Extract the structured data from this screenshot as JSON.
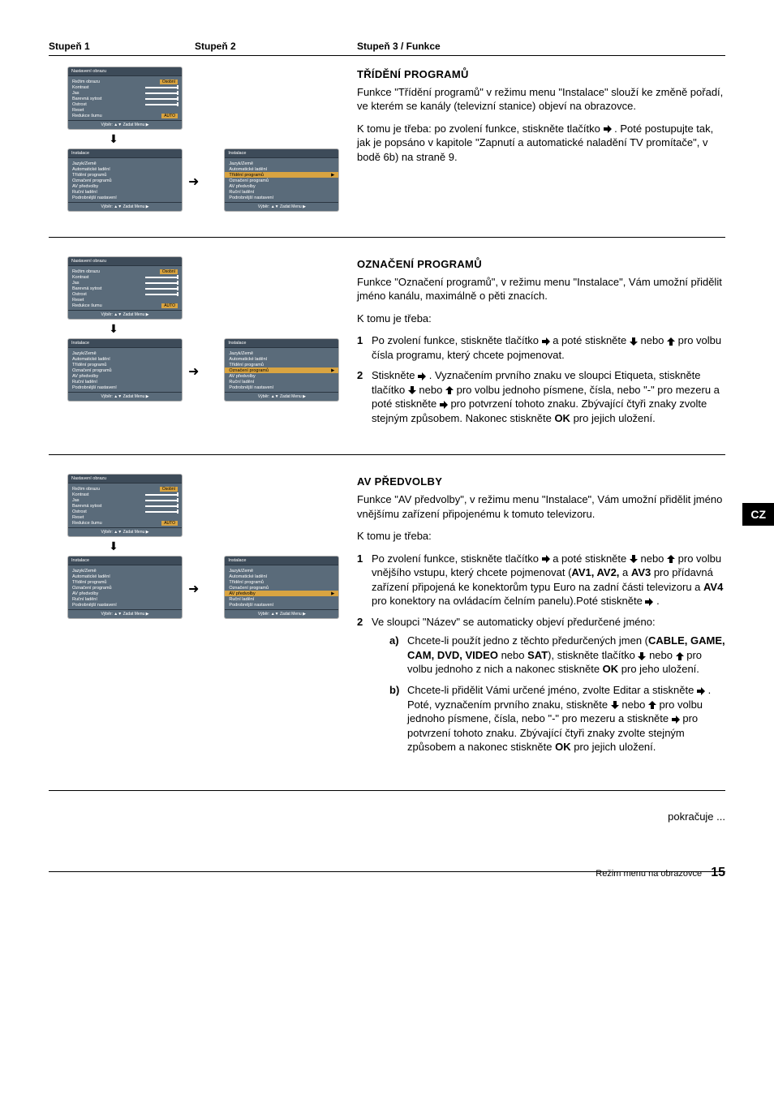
{
  "header": {
    "col1": "Stupeň 1",
    "col2": "Stupeň 2",
    "col3": "Stupeň 3 / Funkce"
  },
  "side_tab": "CZ",
  "continues": "pokračuje ...",
  "footer": {
    "label": "Režim menu na obrazovce",
    "page": "15"
  },
  "colors": {
    "panel_bg": "#5a6b7a",
    "panel_title_bg": "#3d4b59",
    "highlight": "#d9a441",
    "tab_inactive": "#8a96a1"
  },
  "picture_panel": {
    "title": "Nastavení obrazu",
    "rows": [
      {
        "label": "Režim obrazu",
        "badge": "Osobní"
      },
      {
        "label": "Kontrast",
        "slider": true
      },
      {
        "label": "Jas",
        "slider": true
      },
      {
        "label": "Barevná sytost",
        "slider": true
      },
      {
        "label": "Ostrost",
        "slider": true
      },
      {
        "label": "Reset"
      },
      {
        "label": "Redukce šumu",
        "badge": "AUTO"
      }
    ],
    "footer": "Výběr: ▲▼  Zadat Menu ▶"
  },
  "install_panel": {
    "title": "Instalace",
    "rows": [
      "Jazyk/Země",
      "Automatické ladění",
      "Třídění programů",
      "Označení programů",
      "AV předvolby",
      "Ruční ladění",
      "Podrobnější nastavení"
    ],
    "footer": "Výběr: ▲▼  Zadat Menu ▶"
  },
  "sec1": {
    "title": "TŘÍDĚNÍ PROGRAMŮ",
    "p1": "Funkce \"Třídění programů\" v režimu menu \"Instalace\" slouží ke změně pořadí, ve kterém se kanály (televizní stanice) objeví na obrazovce.",
    "p2a": "K tomu je třeba: po zvolení funkce, stiskněte tlačítko ",
    "p2b": ". Poté postupujte tak, jak je popsáno v kapitole \"Zapnutí a automatické naladění TV promítače\", v bodě 6b) na straně 9.",
    "highlight_row": "Třídění programů"
  },
  "sec2": {
    "title": "OZNAČENÍ PROGRAMŮ",
    "p1": "Funkce \"Označení programů\", v režimu menu \"Instalace\", Vám umožní přidělit jméno kanálu, maximálně o pěti znacích.",
    "intro": "K tomu je třeba:",
    "s1a": "Po zvolení funkce, stiskněte tlačítko ",
    "s1b": " a poté stiskněte ",
    "s1c": " nebo ",
    "s1d": " pro volbu čísla programu, který chcete pojmenovat.",
    "s2a": "Stiskněte ",
    "s2b": ". Vyznačením prvního znaku ve sloupci Etiqueta, stiskněte tlačítko ",
    "s2c": " nebo ",
    "s2d": " pro volbu jednoho písmene, čísla, nebo \"-\" pro mezeru a poté stiskněte ",
    "s2e": " pro potvrzení tohoto znaku. Zbývající čtyři znaky zvolte stejným způsobem. Nakonec stiskněte ",
    "s2f": " pro jejich uložení.",
    "ok": "OK",
    "highlight_row": "Označení programů"
  },
  "sec3": {
    "title": "AV PŘEDVOLBY",
    "p1": "Funkce \"AV předvolby\", v režimu menu \"Instalace\", Vám umožní přidělit jméno vnějšímu zařízení připojenému k tomuto televizoru.",
    "intro": "K tomu je třeba:",
    "s1a": "Po zvolení funkce, stiskněte tlačítko ",
    "s1b": " a poté stiskněte ",
    "s1c": " nebo ",
    "s1d": " pro volbu vnějšího vstupu, který chcete pojmenovat (",
    "s1e": "AV1, AV2,",
    "s1f": " a ",
    "s1g": "AV3",
    "s1h": " pro přídavná zařízení připojená ke konektorům typu Euro na zadní části televizoru a ",
    "s1i": "AV4",
    "s1j": " pro konektory na ovládacím čelním panelu).Poté stiskněte ",
    "s1k": ".",
    "s2": "Ve sloupci \"Název\" se automaticky objeví předurčené jméno:",
    "a1": "Chcete-li použít jedno z těchto předurčených jmen (",
    "a2": "CABLE, GAME, CAM, DVD, VIDEO",
    "a3": " nebo ",
    "a4": "SAT",
    "a5": "), stiskněte tlačítko ",
    "a6": " nebo ",
    "a7": " pro volbu jednoho z nich a nakonec stiskněte ",
    "a8": " pro jeho uložení.",
    "b1": "Chcete-li přidělit Vámi určené jméno, zvolte Editar a stiskněte ",
    "b2": ". Poté, vyznačením prvního znaku, stiskněte ",
    "b3": " nebo ",
    "b4": " pro volbu jednoho písmene, čísla, nebo \"-\" pro mezeru a stiskněte ",
    "b5": " pro potvrzení tohoto znaku. Zbývající čtyři znaky zvolte stejným způsobem a nakonec stiskněte ",
    "b6": " pro jejich uložení.",
    "ok": "OK",
    "highlight_row": "AV předvolby"
  }
}
